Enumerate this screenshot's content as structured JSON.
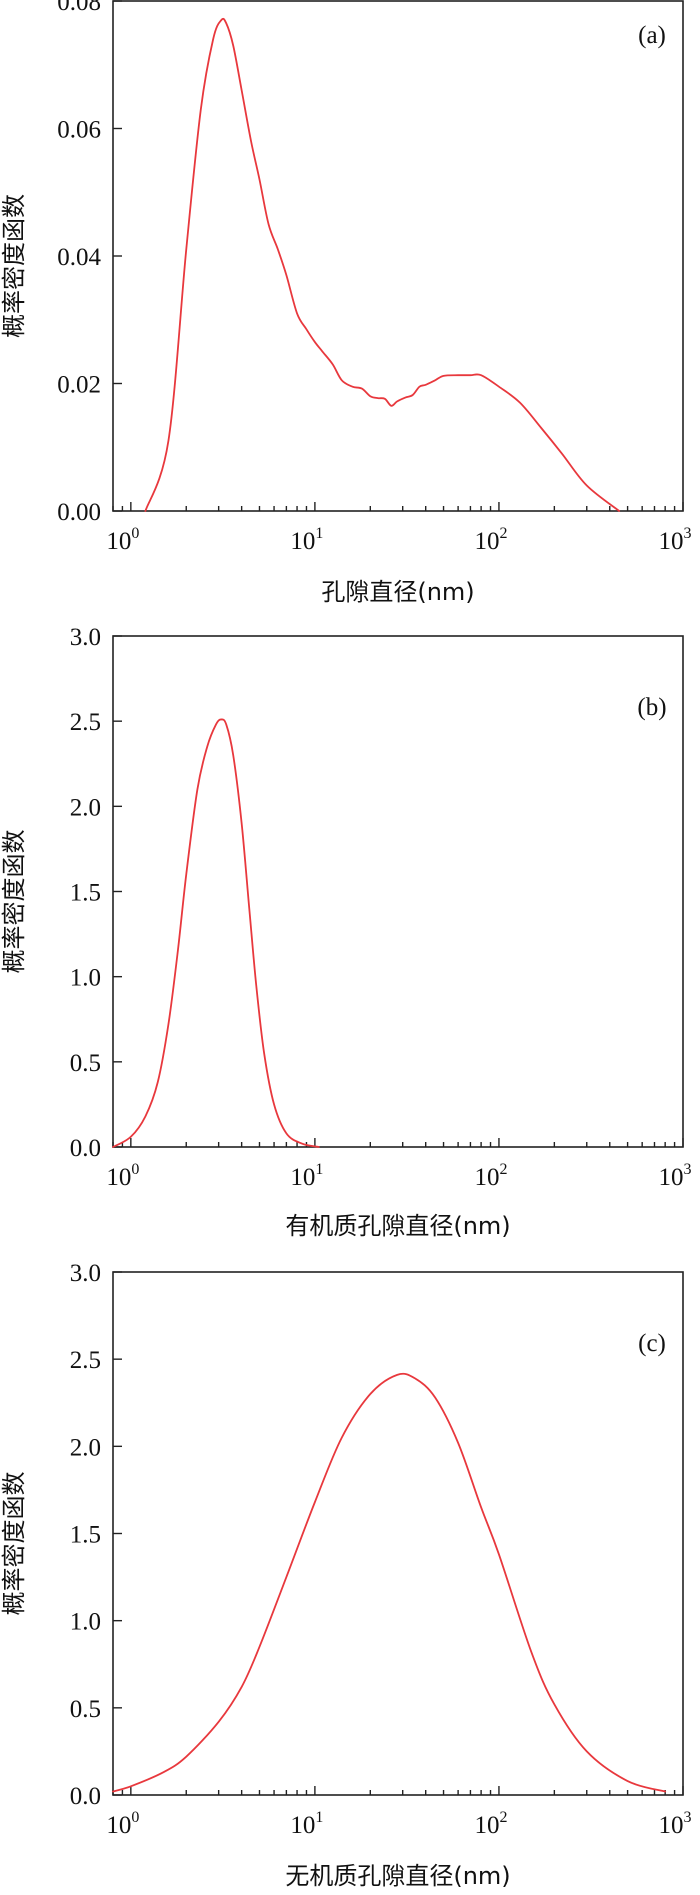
{
  "chart_data": [
    {
      "type": "line",
      "panel_label": "(a)",
      "xlabel": "孔隙直径(nm)",
      "ylabel": "概率密度函数",
      "xscale": "log",
      "xlim": [
        0.8,
        1000
      ],
      "ylim": [
        0,
        0.08
      ],
      "x_ticks": [
        {
          "base": "10",
          "exp": "0",
          "value": 1
        },
        {
          "base": "10",
          "exp": "1",
          "value": 10
        },
        {
          "base": "10",
          "exp": "2",
          "value": 100
        },
        {
          "base": "10",
          "exp": "3",
          "value": 1000
        }
      ],
      "y_ticks": [
        {
          "value": 0,
          "label": "0.00"
        },
        {
          "value": 0.02,
          "label": "0.02"
        },
        {
          "value": 0.04,
          "label": "0.04"
        },
        {
          "value": 0.06,
          "label": "0.06"
        },
        {
          "value": 0.08,
          "label": "0.08"
        }
      ],
      "series": [
        {
          "color": "#e8383d",
          "x": [
            1.2,
            1.6,
            2.0,
            2.4,
            2.8,
            3.1,
            3.3,
            3.6,
            4.0,
            4.5,
            5.0,
            5.6,
            6.3,
            7.0,
            8.0,
            9.0,
            10,
            11,
            12.5,
            14,
            16,
            18,
            20,
            22,
            24,
            26,
            28,
            31,
            34,
            37,
            40,
            45,
            50,
            60,
            70,
            80,
            100,
            130,
            170,
            220,
            300,
            450
          ],
          "y": [
            0.0,
            0.011,
            0.041,
            0.063,
            0.074,
            0.077,
            0.0765,
            0.073,
            0.066,
            0.058,
            0.052,
            0.045,
            0.041,
            0.037,
            0.031,
            0.0285,
            0.0265,
            0.025,
            0.023,
            0.0205,
            0.0195,
            0.0192,
            0.018,
            0.0177,
            0.0176,
            0.0165,
            0.0172,
            0.0178,
            0.0182,
            0.0195,
            0.0198,
            0.0205,
            0.0212,
            0.0213,
            0.0213,
            0.0213,
            0.0195,
            0.017,
            0.013,
            0.009,
            0.004,
            0.0
          ]
        }
      ]
    },
    {
      "type": "line",
      "panel_label": "(b)",
      "xlabel": "有机质孔隙直径(nm)",
      "ylabel": "概率密度函数",
      "xscale": "log",
      "xlim": [
        0.8,
        1000
      ],
      "ylim": [
        0,
        3.0
      ],
      "x_ticks": [
        {
          "base": "10",
          "exp": "0",
          "value": 1
        },
        {
          "base": "10",
          "exp": "1",
          "value": 10
        },
        {
          "base": "10",
          "exp": "2",
          "value": 100
        },
        {
          "base": "10",
          "exp": "3",
          "value": 1000
        }
      ],
      "y_ticks": [
        {
          "value": 0,
          "label": "0.0"
        },
        {
          "value": 0.5,
          "label": "0.5"
        },
        {
          "value": 1.0,
          "label": "1.0"
        },
        {
          "value": 1.5,
          "label": "1.5"
        },
        {
          "value": 2.0,
          "label": "2.0"
        },
        {
          "value": 2.5,
          "label": "2.5"
        },
        {
          "value": 3.0,
          "label": "3.0"
        }
      ],
      "series": [
        {
          "color": "#e8383d",
          "x": [
            0.8,
            1.0,
            1.2,
            1.4,
            1.6,
            1.8,
            2.0,
            2.3,
            2.6,
            2.9,
            3.1,
            3.3,
            3.6,
            4.0,
            4.4,
            4.8,
            5.3,
            6.0,
            7.0,
            8.5,
            10.5
          ],
          "y": [
            0.0,
            0.06,
            0.18,
            0.38,
            0.72,
            1.15,
            1.6,
            2.1,
            2.35,
            2.48,
            2.51,
            2.48,
            2.3,
            1.9,
            1.4,
            0.95,
            0.55,
            0.25,
            0.08,
            0.02,
            0.0
          ]
        }
      ]
    },
    {
      "type": "line",
      "panel_label": "(c)",
      "xlabel": "无机质孔隙直径(nm)",
      "ylabel": "概率密度函数",
      "xscale": "log",
      "xlim": [
        0.8,
        1000
      ],
      "ylim": [
        0,
        3.0
      ],
      "x_ticks": [
        {
          "base": "10",
          "exp": "0",
          "value": 1
        },
        {
          "base": "10",
          "exp": "1",
          "value": 10
        },
        {
          "base": "10",
          "exp": "2",
          "value": 100
        },
        {
          "base": "10",
          "exp": "3",
          "value": 1000
        }
      ],
      "y_ticks": [
        {
          "value": 0,
          "label": "0.0"
        },
        {
          "value": 0.5,
          "label": "0.5"
        },
        {
          "value": 1.0,
          "label": "1.0"
        },
        {
          "value": 1.5,
          "label": "1.5"
        },
        {
          "value": 2.0,
          "label": "2.0"
        },
        {
          "value": 2.5,
          "label": "2.5"
        },
        {
          "value": 3.0,
          "label": "3.0"
        }
      ],
      "series": [
        {
          "color": "#e8383d",
          "x": [
            0.8,
            1.0,
            1.5,
            2,
            3,
            4,
            5,
            7,
            10,
            14,
            20,
            28,
            35,
            45,
            60,
            80,
            100,
            150,
            200,
            300,
            500,
            800
          ],
          "y": [
            0.02,
            0.05,
            0.13,
            0.22,
            0.42,
            0.62,
            0.85,
            1.25,
            1.68,
            2.05,
            2.3,
            2.41,
            2.39,
            2.28,
            2.02,
            1.65,
            1.38,
            0.82,
            0.52,
            0.25,
            0.08,
            0.02
          ]
        }
      ]
    }
  ]
}
